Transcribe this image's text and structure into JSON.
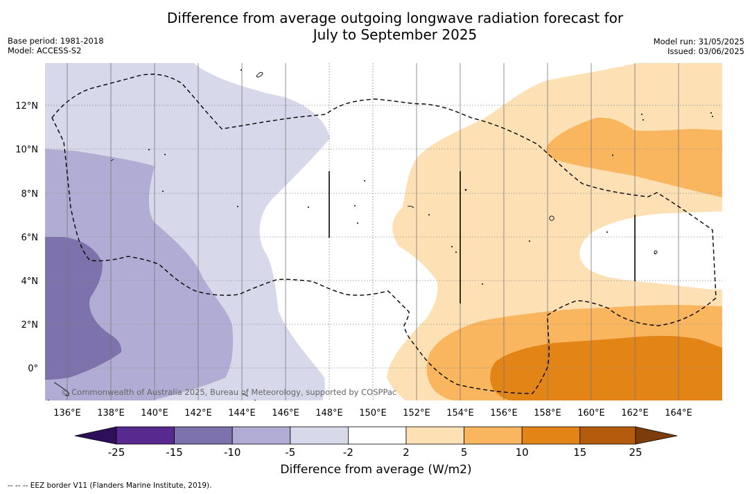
{
  "header": {
    "title_line1": "Difference from average outgoing longwave radiation forecast for",
    "title_line2": "July to September 2025",
    "base_period": "Base period: 1981-2018",
    "model": "Model: ACCESS-S2",
    "model_run": "Model run: 31/05/2025",
    "issued": "Issued: 03/06/2025"
  },
  "map": {
    "lon_labels": [
      "136°E",
      "138°E",
      "140°E",
      "142°E",
      "144°E",
      "146°E",
      "148°E",
      "150°E",
      "152°E",
      "154°E",
      "156°E",
      "158°E",
      "160°E",
      "162°E",
      "164°E"
    ],
    "lat_labels": [
      "12°N",
      "10°N",
      "8°N",
      "6°N",
      "4°N",
      "2°N",
      "0°"
    ],
    "copyright": "© Commonwealth of Australia 2025, Bureau of Meteorology, supported by COSPPac"
  },
  "colorbar": {
    "title": "Difference from average (W/m2)",
    "tick_labels": [
      "-25",
      "-15",
      "-10",
      "-5",
      "-2",
      "2",
      "5",
      "10",
      "15",
      "25"
    ],
    "colors": [
      "#2e0f5a",
      "#58298f",
      "#7e72ad",
      "#b1acd3",
      "#d8d8eb",
      "#ffffff",
      "#fde0b4",
      "#fab55f",
      "#e38417",
      "#b45b0e",
      "#7d3c0b"
    ]
  },
  "footer": {
    "legend": "--  --  -- EEZ border V11 (Flanders Marine Institute, 2019)."
  }
}
